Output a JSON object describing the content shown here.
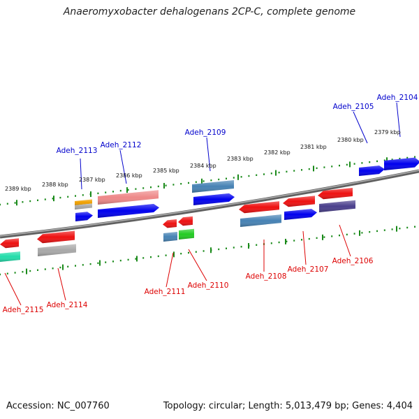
{
  "title": "Anaeromyxobacter dehalogenans 2CP-C, complete genome",
  "footer": {
    "accession": "Accession: NC_007760",
    "info": "Topology: circular; Length: 5,013,479 bp; Genes: 4,404"
  },
  "colors": {
    "backbone": "#808080",
    "tick": "#1a8a1a",
    "forward_label": "#0000cc",
    "reverse_label": "#dd0000",
    "red": "#ee1111",
    "blue": "#0000ee",
    "steelblue": "#4682b4",
    "pink": "#ee8888",
    "orange": "#f0a000",
    "gray": "#a8a8a8",
    "green": "#22cc22",
    "mint": "#22ddaa",
    "purple": "#4a3f8c"
  },
  "scale_labels": [
    {
      "text": "2389 kbp"
    },
    {
      "text": "2388 kbp"
    },
    {
      "text": "2387 kbp"
    },
    {
      "text": "2386 kbp"
    },
    {
      "text": "2385 kbp"
    },
    {
      "text": "2384 kbp"
    },
    {
      "text": "2383 kbp"
    },
    {
      "text": "2382 kbp"
    },
    {
      "text": "2381 kbp"
    },
    {
      "text": "2380 kbp"
    },
    {
      "text": "2379 kbp"
    }
  ],
  "gene_labels": [
    {
      "text": "Adeh_2113",
      "strand": "forward"
    },
    {
      "text": "Adeh_2112",
      "strand": "forward"
    },
    {
      "text": "Adeh_2109",
      "strand": "forward"
    },
    {
      "text": "Adeh_2105",
      "strand": "forward"
    },
    {
      "text": "Adeh_2104",
      "strand": "forward"
    },
    {
      "text": "Adeh_2115",
      "strand": "reverse"
    },
    {
      "text": "Adeh_2114",
      "strand": "reverse"
    },
    {
      "text": "Adeh_2111",
      "strand": "reverse"
    },
    {
      "text": "Adeh_2110",
      "strand": "reverse"
    },
    {
      "text": "Adeh_2108",
      "strand": "reverse"
    },
    {
      "text": "Adeh_2107",
      "strand": "reverse"
    },
    {
      "text": "Adeh_2106",
      "strand": "reverse"
    }
  ]
}
